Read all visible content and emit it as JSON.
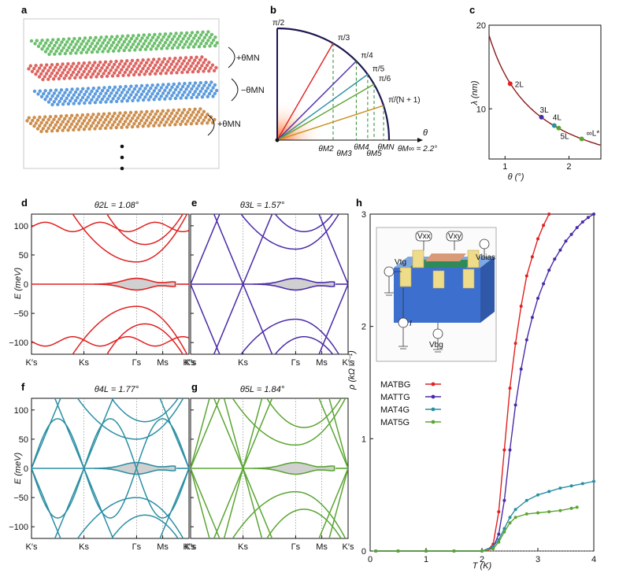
{
  "panels": {
    "a": {
      "label": "a",
      "angle_labels": [
        "+θMN",
        "−θMN",
        "+θMN"
      ],
      "colors": [
        "#5cb85c",
        "#d9534f",
        "#4a90d9",
        "#c8823a"
      ]
    },
    "b": {
      "label": "b",
      "angles": [
        "π/2",
        "π/3",
        "π/4",
        "π/5",
        "π/6",
        "π/(N + 1)"
      ],
      "theta_axis": "θ",
      "theta_labels": [
        "θM2",
        "θM3",
        "θM4",
        "θM5",
        "θMN",
        "θM∞ = 2.2°"
      ],
      "ray_colors": [
        "#e02020",
        "#4b2aa8",
        "#2b8fa3",
        "#5aa532",
        "#c8901e"
      ]
    },
    "c": {
      "label": "c",
      "xlabel": "θ (°)",
      "ylabel": "λ (nm)",
      "xticks": [
        "1",
        "2"
      ],
      "yticks": [
        "10",
        "20"
      ],
      "points": [
        {
          "name": "2L",
          "color": "#e02020"
        },
        {
          "name": "3L",
          "color": "#4b2aa8"
        },
        {
          "name": "4L",
          "color": "#2b8fa3"
        },
        {
          "name": "5L",
          "color": "#5aa532"
        },
        {
          "name": "∞L*",
          "color": "#5aa532"
        }
      ]
    },
    "d": {
      "label": "d",
      "title": "θ2L = 1.08°",
      "color": "#e02020"
    },
    "e": {
      "label": "e",
      "title": "θ3L = 1.57°",
      "color": "#4b2aa8"
    },
    "f": {
      "label": "f",
      "title": "θ4L = 1.77°",
      "color": "#2b8fa3"
    },
    "g": {
      "label": "g",
      "title": "θ5L = 1.84°",
      "color": "#5aa532"
    },
    "band_common": {
      "ylabel": "E (meV)",
      "yticks": [
        "100",
        "50",
        "0",
        "−50",
        "−100"
      ],
      "kticks": [
        "K′s",
        "Ks",
        "Γs",
        "Ms",
        "K′s"
      ]
    },
    "h": {
      "label": "h",
      "xlabel": "T (K)",
      "ylabel": "ρ (kΩ □⁻¹)",
      "xticks": [
        "0",
        "1",
        "2",
        "3",
        "4"
      ],
      "yticks": [
        "0",
        "1",
        "2",
        "3"
      ],
      "inset_labels": [
        "Vxx",
        "Vxy",
        "Vbias",
        "Vtg",
        "Vbg",
        "I"
      ],
      "legend": [
        "MATBG",
        "MATTG",
        "MAT4G",
        "MAT5G"
      ]
    }
  },
  "chart_data": [
    {
      "type": "line",
      "title": "",
      "xlabel": "θ (°)",
      "ylabel": "λ (nm)",
      "xlim": [
        0.75,
        2.5
      ],
      "ylim": [
        4,
        20
      ],
      "series": [
        {
          "name": "",
          "x": [
            0.75,
            1.0,
            1.25,
            1.5,
            1.75,
            2.0,
            2.25,
            2.5
          ],
          "y": [
            18.8,
            14.1,
            11.3,
            9.4,
            8.1,
            7.05,
            6.27,
            5.64
          ]
        }
      ],
      "points": [
        {
          "label": "2L",
          "x": 1.08,
          "y": 13.0
        },
        {
          "label": "3L",
          "x": 1.57,
          "y": 9.0
        },
        {
          "label": "4L",
          "x": 1.77,
          "y": 8.0
        },
        {
          "label": "5L",
          "x": 1.84,
          "y": 7.7
        },
        {
          "label": "∞L*",
          "x": 2.2,
          "y": 6.4
        }
      ]
    },
    {
      "type": "line",
      "title": "",
      "xlabel": "T (K)",
      "ylabel": "ρ (kΩ □⁻¹)",
      "xlim": [
        0,
        4
      ],
      "ylim": [
        0,
        3
      ],
      "series": [
        {
          "name": "MATBG",
          "color": "#e02020",
          "x": [
            0.1,
            0.5,
            1.0,
            1.5,
            2.0,
            2.1,
            2.2,
            2.3,
            2.4,
            2.5,
            2.6,
            2.7,
            2.8,
            2.9,
            3.0,
            3.1,
            3.2
          ],
          "y": [
            0.0,
            0.0,
            0.0,
            0.0,
            0.0,
            0.01,
            0.06,
            0.35,
            0.9,
            1.45,
            1.85,
            2.18,
            2.45,
            2.62,
            2.78,
            2.9,
            3.0
          ]
        },
        {
          "name": "MATTG",
          "color": "#4b2aa8",
          "x": [
            0.1,
            0.5,
            1.0,
            1.5,
            2.0,
            2.2,
            2.3,
            2.4,
            2.5,
            2.6,
            2.7,
            2.8,
            2.9,
            3.0,
            3.1,
            3.2,
            3.3,
            3.4,
            3.5,
            3.6,
            3.7,
            3.8,
            3.9,
            4.0
          ],
          "y": [
            0.0,
            0.0,
            0.0,
            0.0,
            0.0,
            0.03,
            0.15,
            0.45,
            0.9,
            1.3,
            1.62,
            1.88,
            2.08,
            2.25,
            2.38,
            2.5,
            2.6,
            2.68,
            2.76,
            2.82,
            2.88,
            2.93,
            2.97,
            3.0
          ]
        },
        {
          "name": "MAT4G",
          "color": "#2b8fa3",
          "x": [
            0.1,
            0.5,
            1.0,
            1.5,
            2.0,
            2.2,
            2.3,
            2.4,
            2.5,
            2.6,
            2.8,
            3.0,
            3.2,
            3.4,
            3.6,
            3.8,
            4.0
          ],
          "y": [
            0.0,
            0.0,
            0.0,
            0.0,
            0.0,
            0.04,
            0.1,
            0.2,
            0.3,
            0.37,
            0.45,
            0.5,
            0.53,
            0.56,
            0.58,
            0.6,
            0.62
          ]
        },
        {
          "name": "MAT5G",
          "color": "#5aa532",
          "x": [
            0.1,
            0.5,
            1.0,
            1.5,
            2.0,
            2.2,
            2.3,
            2.4,
            2.5,
            2.6,
            2.8,
            3.0,
            3.2,
            3.4,
            3.6,
            3.7
          ],
          "y": [
            0.0,
            0.0,
            0.0,
            0.0,
            0.0,
            0.02,
            0.08,
            0.17,
            0.25,
            0.3,
            0.33,
            0.34,
            0.35,
            0.36,
            0.38,
            0.39
          ]
        }
      ]
    }
  ]
}
